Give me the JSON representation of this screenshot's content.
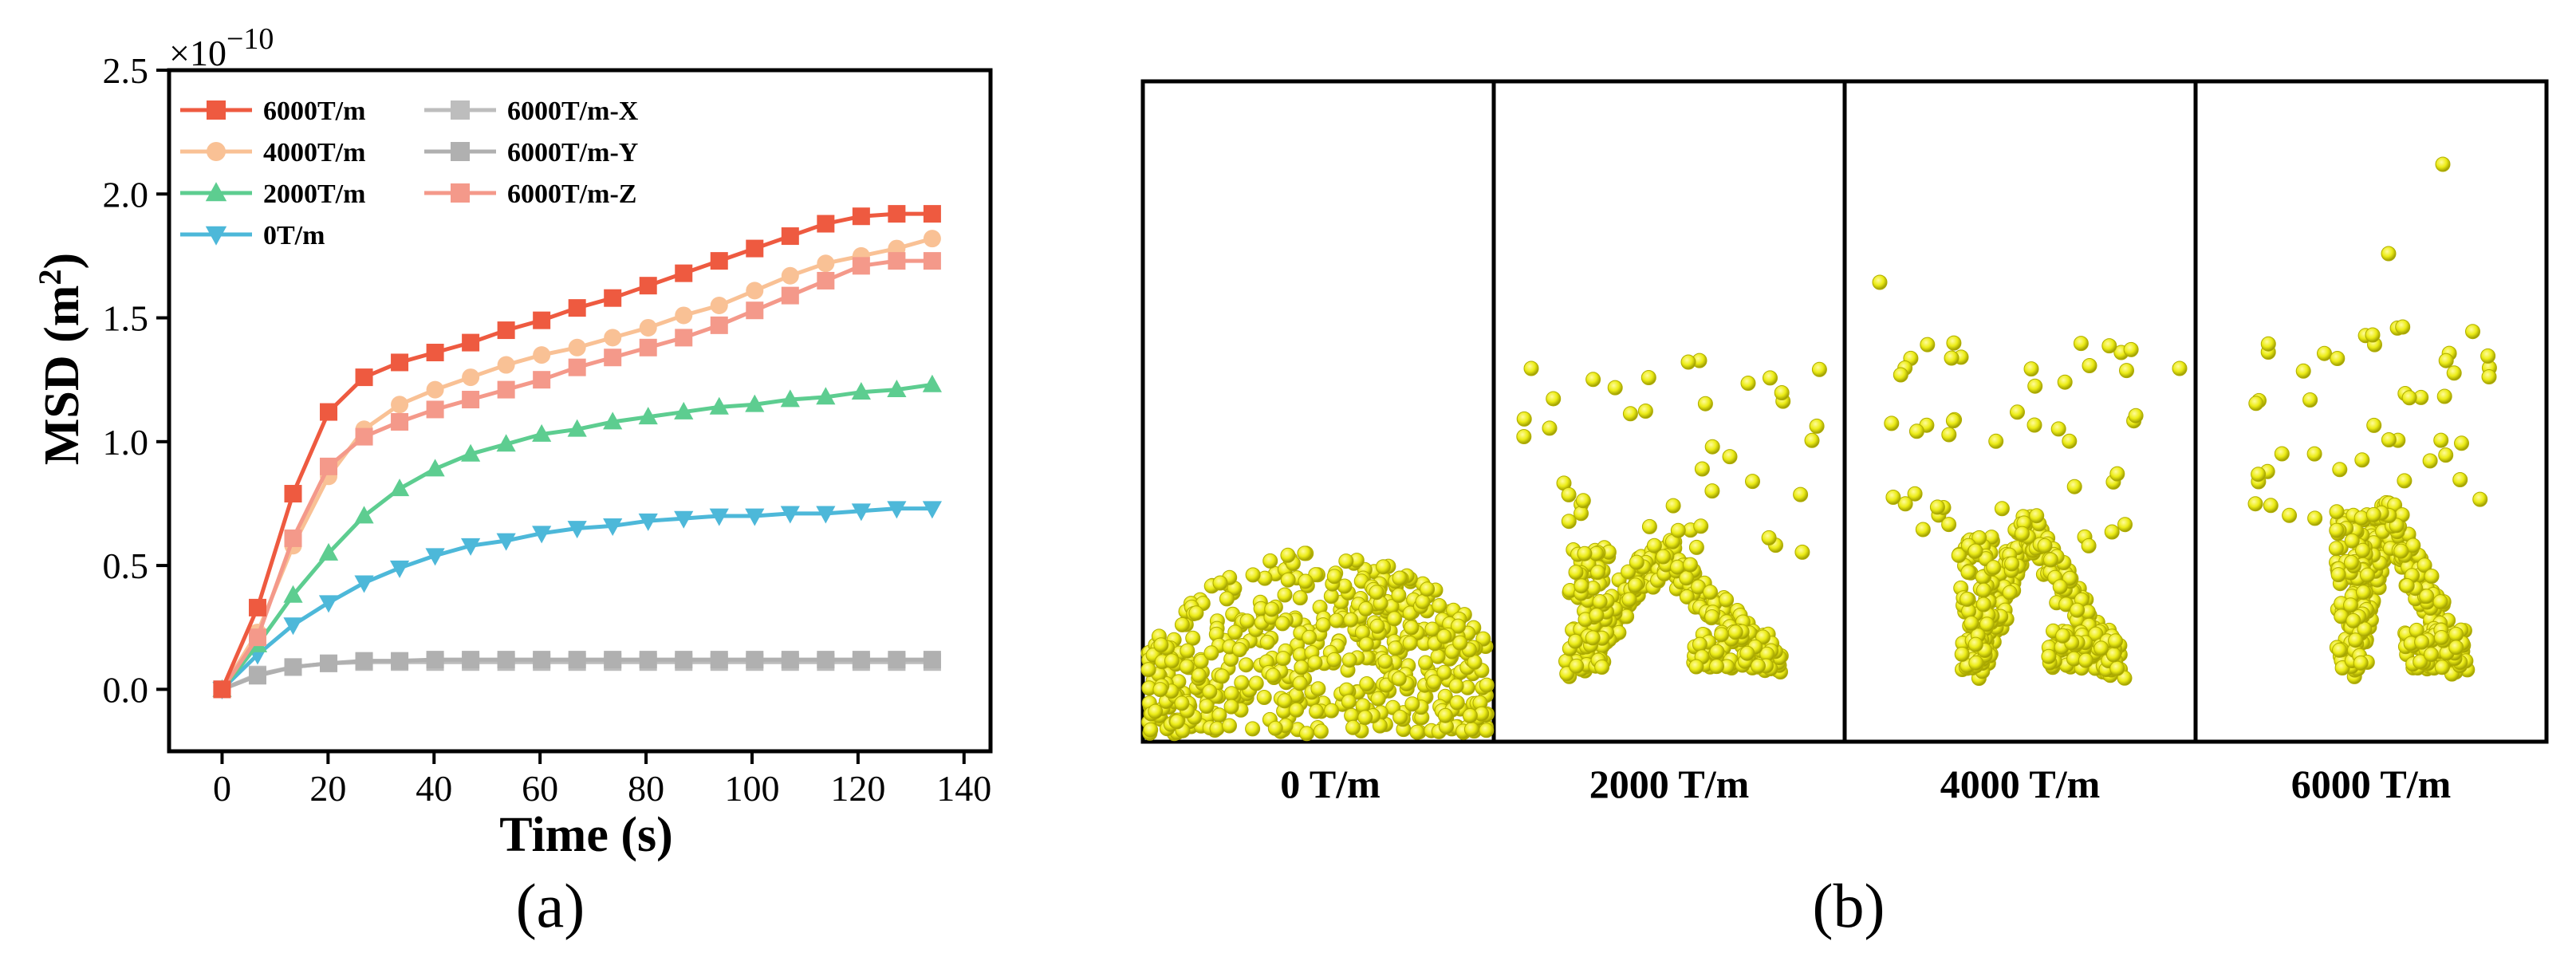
{
  "captions": {
    "a": "(a)",
    "b": "(b)"
  },
  "chart_data": {
    "type": "line",
    "title": "",
    "xlabel": "Time (s)",
    "ylabel_main": "MSD (m",
    "ylabel_sup": "2",
    "ylabel_end": ")",
    "y_exponent_prefix": "×10",
    "y_exponent_power": "−10",
    "xlim": [
      -10,
      145
    ],
    "ylim": [
      -0.25,
      2.5
    ],
    "xticks": [
      0,
      20,
      40,
      60,
      80,
      100,
      120,
      140
    ],
    "xtick_labels": [
      "0",
      "20",
      "40",
      "60",
      "80",
      "100",
      "120",
      "140"
    ],
    "yticks": [
      0.0,
      0.5,
      1.0,
      1.5,
      2.0,
      2.5
    ],
    "ytick_labels": [
      "0.0",
      "0.5",
      "1.0",
      "1.5",
      "2.0",
      "2.5"
    ],
    "x": [
      0,
      6.7,
      13.4,
      20.1,
      26.8,
      33.5,
      40.2,
      46.9,
      53.6,
      60.3,
      67,
      73.7,
      80.4,
      87.1,
      93.8,
      100.5,
      107.2,
      113.9,
      120.6,
      127.3,
      134
    ],
    "legend_position": "top-left",
    "series": [
      {
        "name": "6000T/m",
        "color": "#ee5a40",
        "marker": "square",
        "values": [
          0,
          0.33,
          0.79,
          1.12,
          1.26,
          1.32,
          1.36,
          1.4,
          1.45,
          1.49,
          1.54,
          1.58,
          1.63,
          1.68,
          1.73,
          1.78,
          1.83,
          1.88,
          1.91,
          1.92,
          1.92
        ]
      },
      {
        "name": "4000T/m",
        "color": "#f9c195",
        "marker": "circle",
        "values": [
          0,
          0.23,
          0.58,
          0.86,
          1.05,
          1.15,
          1.21,
          1.26,
          1.31,
          1.35,
          1.38,
          1.42,
          1.46,
          1.51,
          1.55,
          1.61,
          1.67,
          1.72,
          1.75,
          1.78,
          1.82
        ]
      },
      {
        "name": "2000T/m",
        "color": "#5dcd90",
        "marker": "triangle-up",
        "values": [
          0,
          0.18,
          0.38,
          0.55,
          0.7,
          0.81,
          0.89,
          0.95,
          0.99,
          1.03,
          1.05,
          1.08,
          1.1,
          1.12,
          1.14,
          1.15,
          1.17,
          1.18,
          1.2,
          1.21,
          1.23
        ]
      },
      {
        "name": "0T/m",
        "color": "#4db8d9",
        "marker": "triangle-down",
        "values": [
          0,
          0.14,
          0.26,
          0.35,
          0.43,
          0.49,
          0.54,
          0.58,
          0.6,
          0.63,
          0.65,
          0.66,
          0.68,
          0.69,
          0.7,
          0.7,
          0.71,
          0.71,
          0.72,
          0.73,
          0.73
        ]
      },
      {
        "name": "6000T/m-X",
        "color": "#bdbdbd",
        "marker": "square",
        "values": [
          0,
          0.06,
          0.09,
          0.105,
          0.11,
          0.11,
          0.11,
          0.11,
          0.11,
          0.11,
          0.11,
          0.11,
          0.11,
          0.11,
          0.11,
          0.11,
          0.11,
          0.11,
          0.11,
          0.11,
          0.11
        ]
      },
      {
        "name": "6000T/m-Y",
        "color": "#b0b0b0",
        "marker": "square",
        "values": [
          0,
          0.055,
          0.09,
          0.105,
          0.115,
          0.115,
          0.12,
          0.12,
          0.12,
          0.12,
          0.12,
          0.12,
          0.12,
          0.12,
          0.12,
          0.12,
          0.12,
          0.12,
          0.12,
          0.12,
          0.12
        ]
      },
      {
        "name": "6000T/m-Z",
        "color": "#f4998a",
        "marker": "square",
        "values": [
          0,
          0.21,
          0.61,
          0.9,
          1.02,
          1.08,
          1.13,
          1.17,
          1.21,
          1.25,
          1.3,
          1.34,
          1.38,
          1.42,
          1.47,
          1.53,
          1.59,
          1.65,
          1.71,
          1.73,
          1.73
        ]
      }
    ],
    "legend_order": [
      "6000T/m",
      "6000T/m-X",
      "4000T/m",
      "6000T/m-Y",
      "2000T/m",
      "6000T/m-Z",
      "0T/m"
    ]
  },
  "panel_b": {
    "particle_color": "#ecec16",
    "panels": [
      {
        "label": "0 T/m",
        "distribution": "settled-layer"
      },
      {
        "label": "2000 T/m",
        "distribution": "low-chains"
      },
      {
        "label": "4000 T/m",
        "distribution": "mid-chains"
      },
      {
        "label": "6000 T/m",
        "distribution": "tall-chains"
      }
    ]
  }
}
